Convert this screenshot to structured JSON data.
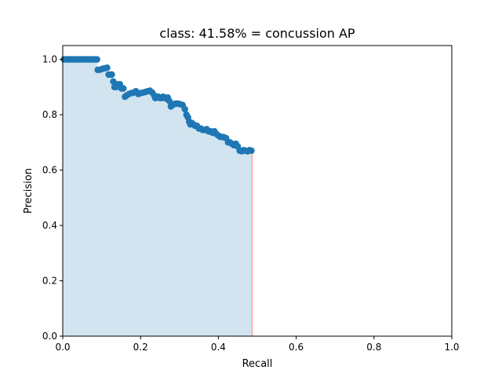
{
  "chart_data": {
    "type": "scatter",
    "title": "class: 41.58% = concussion AP",
    "xlabel": "Recall",
    "ylabel": "Precision",
    "xlim": [
      0.0,
      1.0
    ],
    "ylim": [
      0.0,
      1.05
    ],
    "xticks": [
      "0.0",
      "0.2",
      "0.4",
      "0.6",
      "0.8",
      "1.0"
    ],
    "yticks": [
      "0.0",
      "0.2",
      "0.4",
      "0.6",
      "0.8",
      "1.0"
    ],
    "grid": false,
    "fill_under_curve": true,
    "end_line_x": 0.487,
    "colors": {
      "points": "#1f77b4",
      "fill": "#1f77b4",
      "end_line": "#f4a8a8",
      "axes": "#000000"
    },
    "series": [
      {
        "x": [
          0.003,
          0.008,
          0.013,
          0.018,
          0.023,
          0.028,
          0.033,
          0.038,
          0.043,
          0.048,
          0.053,
          0.058,
          0.063,
          0.068,
          0.073,
          0.078,
          0.083,
          0.088,
          0.09,
          0.096,
          0.102,
          0.108,
          0.114,
          0.118,
          0.122,
          0.126,
          0.13,
          0.133,
          0.137,
          0.142,
          0.147,
          0.151,
          0.156,
          0.16,
          0.164,
          0.17,
          0.176,
          0.182,
          0.188,
          0.194,
          0.2,
          0.206,
          0.212,
          0.218,
          0.224,
          0.23,
          0.235,
          0.238,
          0.242,
          0.246,
          0.25,
          0.254,
          0.258,
          0.262,
          0.266,
          0.27,
          0.274,
          0.278,
          0.282,
          0.286,
          0.29,
          0.296,
          0.302,
          0.308,
          0.314,
          0.318,
          0.322,
          0.325,
          0.328,
          0.332,
          0.336,
          0.34,
          0.345,
          0.35,
          0.355,
          0.36,
          0.365,
          0.37,
          0.375,
          0.38,
          0.385,
          0.39,
          0.395,
          0.4,
          0.405,
          0.41,
          0.415,
          0.42,
          0.425,
          0.43,
          0.435,
          0.44,
          0.445,
          0.45,
          0.455,
          0.46,
          0.465,
          0.47,
          0.475,
          0.48,
          0.485
        ],
        "y": [
          1.0,
          1.0,
          1.0,
          1.0,
          1.0,
          1.0,
          1.0,
          1.0,
          1.0,
          1.0,
          1.0,
          1.0,
          1.0,
          1.0,
          1.0,
          1.0,
          1.0,
          1.0,
          0.962,
          0.963,
          0.966,
          0.968,
          0.97,
          0.945,
          0.945,
          0.945,
          0.92,
          0.9,
          0.9,
          0.91,
          0.91,
          0.895,
          0.895,
          0.865,
          0.87,
          0.875,
          0.878,
          0.88,
          0.885,
          0.875,
          0.878,
          0.88,
          0.882,
          0.885,
          0.887,
          0.88,
          0.87,
          0.86,
          0.862,
          0.865,
          0.86,
          0.86,
          0.865,
          0.862,
          0.858,
          0.862,
          0.85,
          0.83,
          0.835,
          0.838,
          0.84,
          0.84,
          0.838,
          0.835,
          0.82,
          0.8,
          0.79,
          0.775,
          0.765,
          0.77,
          0.765,
          0.76,
          0.76,
          0.75,
          0.75,
          0.745,
          0.745,
          0.748,
          0.74,
          0.74,
          0.735,
          0.74,
          0.73,
          0.725,
          0.72,
          0.72,
          0.718,
          0.715,
          0.7,
          0.7,
          0.695,
          0.69,
          0.695,
          0.685,
          0.67,
          0.668,
          0.672,
          0.67,
          0.668,
          0.672,
          0.67
        ]
      }
    ]
  }
}
